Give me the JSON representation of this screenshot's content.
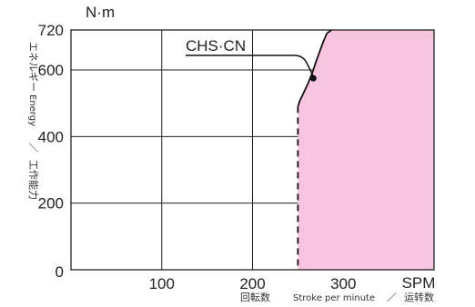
{
  "chart_data": {
    "type": "area",
    "y_unit": "N·m",
    "x_unit": "SPM",
    "ylabel_jp": "エネルギー",
    "ylabel_en": "Energy",
    "ylabel_sep": "／",
    "ylabel_jp2": "工作能力",
    "xlabel_jp": "回転数",
    "xlabel_en": "Stroke per minute",
    "xlabel_sep": "／",
    "xlabel_cn": "运转数",
    "xlim": [
      0,
      400
    ],
    "ylim": [
      0,
      720
    ],
    "x_ticks": [
      "100",
      "200",
      "300"
    ],
    "x_tick_values": [
      100,
      200,
      300
    ],
    "y_ticks": [
      "200",
      "400",
      "600",
      "720"
    ],
    "y_tick_values": [
      200,
      400,
      600,
      720
    ],
    "origin_label": "0",
    "grid": true,
    "series": [
      {
        "name": "CHS·CN",
        "x": [
          250,
          252,
          256,
          260,
          264,
          267,
          270,
          274,
          278,
          282,
          287
        ],
        "y": [
          490,
          507,
          530,
          553,
          578,
          600,
          625,
          655,
          685,
          710,
          720
        ]
      }
    ],
    "region_start_x": 250,
    "region_end_x": 400,
    "marker": {
      "x": 267,
      "y": 575
    },
    "colors": {
      "region_fill": "#f7c5e0",
      "line": "#111111",
      "grid": "#222222"
    }
  }
}
